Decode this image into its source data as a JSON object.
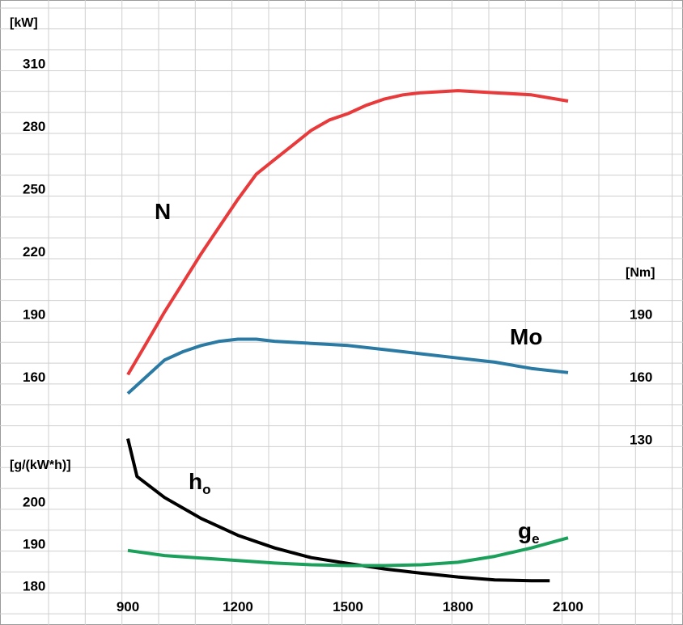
{
  "chart_data": {
    "type": "line",
    "title": "",
    "grid": true,
    "x": {
      "ticks": [
        900,
        1200,
        1500,
        1800,
        2100
      ],
      "range": [
        900,
        2100
      ]
    },
    "y_left_upper": {
      "unit": "[kW]",
      "ticks": [
        160,
        190,
        220,
        250,
        280,
        310
      ]
    },
    "y_left_lower": {
      "unit": "[g/(kW*h)]",
      "ticks": [
        180,
        190,
        200
      ]
    },
    "y_right": {
      "unit": "[Nm]",
      "ticks": [
        130,
        160,
        190
      ]
    },
    "series": [
      {
        "name": "N",
        "color": "#e8393b",
        "axis": "kW",
        "points": [
          [
            900,
            161
          ],
          [
            950,
            176
          ],
          [
            1000,
            191
          ],
          [
            1050,
            205
          ],
          [
            1100,
            219
          ],
          [
            1150,
            232
          ],
          [
            1200,
            245
          ],
          [
            1250,
            257
          ],
          [
            1300,
            264
          ],
          [
            1350,
            271
          ],
          [
            1400,
            278
          ],
          [
            1450,
            283
          ],
          [
            1500,
            286
          ],
          [
            1550,
            290
          ],
          [
            1600,
            293
          ],
          [
            1650,
            295
          ],
          [
            1700,
            296
          ],
          [
            1800,
            297
          ],
          [
            1900,
            296
          ],
          [
            2000,
            295
          ],
          [
            2100,
            292
          ]
        ]
      },
      {
        "name": "Mo",
        "color": "#2a7aa4",
        "axis": "Nm",
        "points": [
          [
            900,
            152
          ],
          [
            950,
            160
          ],
          [
            1000,
            168
          ],
          [
            1050,
            172
          ],
          [
            1100,
            175
          ],
          [
            1150,
            177
          ],
          [
            1200,
            178
          ],
          [
            1250,
            178
          ],
          [
            1300,
            177
          ],
          [
            1400,
            176
          ],
          [
            1500,
            175
          ],
          [
            1600,
            173
          ],
          [
            1700,
            171
          ],
          [
            1800,
            169
          ],
          [
            1900,
            167
          ],
          [
            2000,
            164
          ],
          [
            2100,
            162
          ]
        ]
      },
      {
        "name": "h",
        "name_sub": "o",
        "color": "#000000",
        "axis": "g/(kW*h)",
        "points": [
          [
            900,
            215
          ],
          [
            925,
            206
          ],
          [
            1000,
            201
          ],
          [
            1100,
            196
          ],
          [
            1200,
            192
          ],
          [
            1300,
            189
          ],
          [
            1400,
            186.7
          ],
          [
            1500,
            185.3
          ],
          [
            1600,
            184
          ],
          [
            1700,
            183
          ],
          [
            1800,
            182.1
          ],
          [
            1900,
            181.4
          ],
          [
            2000,
            181.2
          ],
          [
            2050,
            181.2
          ]
        ]
      },
      {
        "name": "g",
        "name_sub": "e",
        "color": "#1aa05a",
        "axis": "g/(kW*h)",
        "points": [
          [
            900,
            188.4
          ],
          [
            1000,
            187.2
          ],
          [
            1100,
            186.6
          ],
          [
            1200,
            186
          ],
          [
            1300,
            185.4
          ],
          [
            1400,
            185
          ],
          [
            1500,
            184.8
          ],
          [
            1600,
            184.8
          ],
          [
            1700,
            185
          ],
          [
            1800,
            185.6
          ],
          [
            1900,
            187
          ],
          [
            2000,
            189
          ],
          [
            2100,
            191.4
          ]
        ]
      }
    ]
  }
}
